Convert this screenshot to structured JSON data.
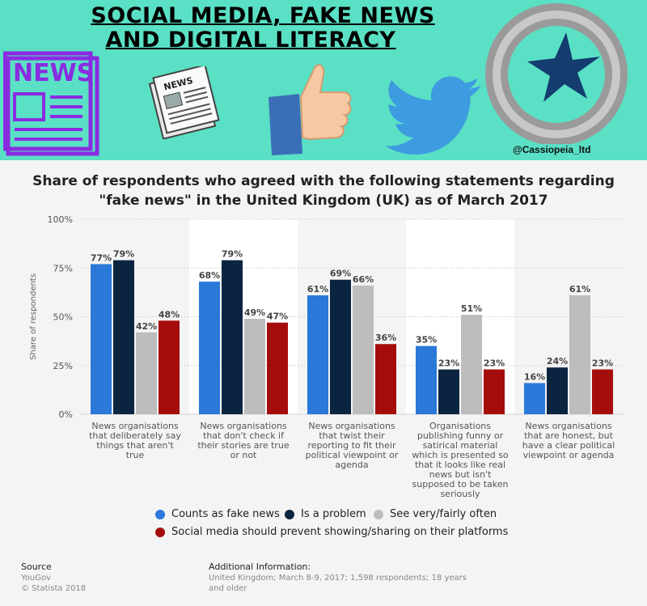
{
  "banner": {
    "title_line1": "SOCIAL MEDIA, FAKE NEWS",
    "title_line2": "AND DIGITAL LITERACY",
    "news_icon_text": "NEWS",
    "newspaper_text": "NEWS",
    "handle": "@Cassiopeia_ltd",
    "colors": {
      "background": "#5ae0c4",
      "news_icon": "#8a2be2",
      "twitter": "#3d9be0",
      "star": "#143c6e",
      "ring": "#a9a9a9"
    }
  },
  "chart_data": {
    "type": "bar",
    "title_line1": "Share of respondents who agreed with the following statements regarding",
    "title_line2": "\"fake news\" in the United Kingdom (UK) as of March 2017",
    "ylabel": "Share of respondents",
    "ylim": [
      0,
      100
    ],
    "yticks": [
      "100%",
      "75%",
      "50%",
      "25%",
      "0%"
    ],
    "ytick_values": [
      100,
      75,
      50,
      25,
      0
    ],
    "categories": [
      [
        "News organisations",
        "that deliberately say",
        "things that aren't",
        "true"
      ],
      [
        "News organisations",
        "that don't check if",
        "their stories are true",
        "or not"
      ],
      [
        "News organisations",
        "that twist their",
        "reporting to fit their",
        "political viewpoint or",
        "agenda"
      ],
      [
        "Organisations",
        "publishing funny or",
        "satirical material",
        "which is presented so",
        "that it looks like real",
        "news but isn't",
        "supposed to be taken",
        "seriously"
      ],
      [
        "News organisations",
        "that are honest, but",
        "have a clear political",
        "viewpoint or agenda"
      ]
    ],
    "series": [
      {
        "name": "Counts as fake news",
        "color": "#2a78d8",
        "values": [
          77,
          68,
          61,
          35,
          16
        ]
      },
      {
        "name": "Is a problem",
        "color": "#0b2541",
        "values": [
          79,
          79,
          69,
          23,
          24
        ]
      },
      {
        "name": "See very/fairly often",
        "color": "#bdbdbd",
        "values": [
          42,
          49,
          66,
          51,
          61
        ]
      },
      {
        "name": "Social media should prevent showing/sharing on their platforms",
        "color": "#a50d0d",
        "values": [
          48,
          47,
          36,
          23,
          23
        ]
      }
    ],
    "grid": true,
    "legend_position": "bottom"
  },
  "footer": {
    "source_label": "Source",
    "source_value": "YouGov",
    "copyright": "© Statista 2018",
    "additional_label": "Additional Information:",
    "additional_line1": "United Kingdom; March 8-9, 2017; 1,598 respondents; 18 years",
    "additional_line2": "and older"
  }
}
